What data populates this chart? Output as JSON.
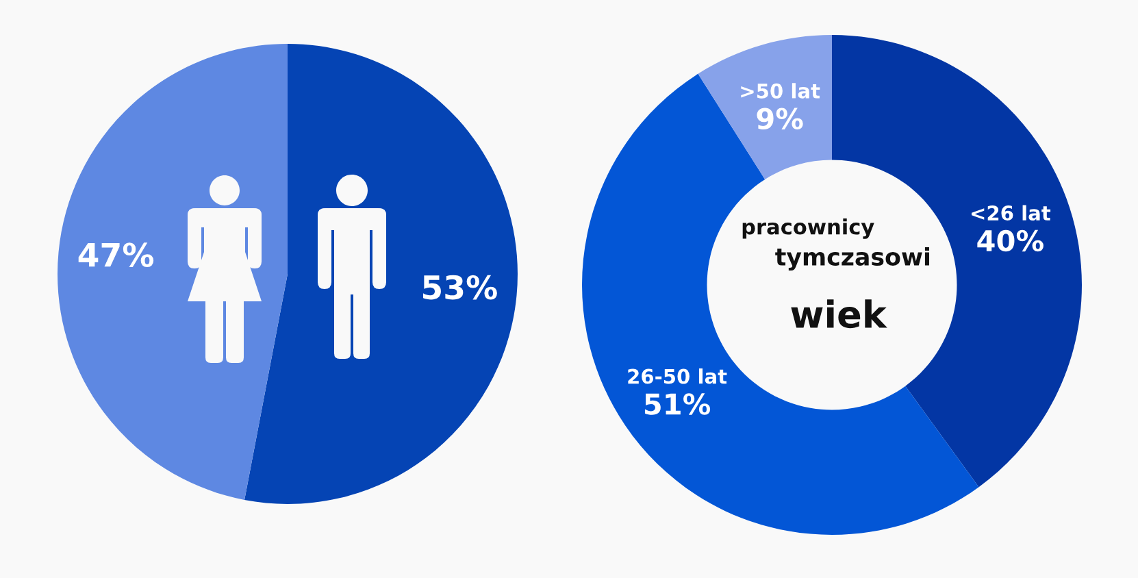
{
  "chart_data": [
    {
      "type": "pie",
      "categories": [
        null,
        null
      ],
      "values": [
        53,
        47
      ],
      "colors": [
        "#0544b4",
        "#5e88e2"
      ],
      "value_labels": [
        "53%",
        "47%"
      ]
    },
    {
      "type": "donut",
      "title": "wiek",
      "subtitle": "pracownicy tymczasowi",
      "categories": [
        "<26 lat",
        "26-50 lat",
        ">50 lat"
      ],
      "values": [
        40,
        51,
        9
      ],
      "colors": [
        "#0336a4",
        "#0356d6",
        "#87a2ea"
      ],
      "value_labels": [
        "40%",
        "51%",
        "9%"
      ]
    }
  ]
}
